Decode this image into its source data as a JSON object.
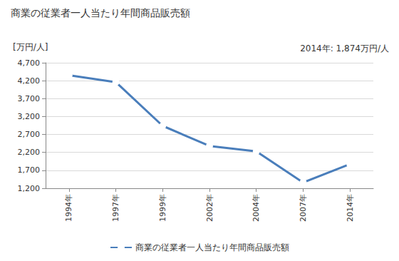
{
  "chart_data": {
    "type": "line",
    "title": "商業の従業者一人当たり年間商品販売額",
    "ylabel": "[万円/人]",
    "annotations": [
      "2014年: 1,874万円/人"
    ],
    "categories": [
      "1994年",
      "1997年",
      "1999年",
      "2002年",
      "2004年",
      "2007年",
      "2014年"
    ],
    "series": [
      {
        "name": "商業の従業者一人当たり年間商品販売額",
        "color": "#4a7ebb",
        "marker": "circle",
        "values": [
          4350,
          4160,
          2940,
          2380,
          2230,
          1360,
          1874
        ]
      }
    ],
    "ylim": [
      1200,
      4700
    ],
    "yticks": [
      {
        "value": 1200,
        "label": "1,200"
      },
      {
        "value": 1700,
        "label": "1,700"
      },
      {
        "value": 2200,
        "label": "2,200"
      },
      {
        "value": 2700,
        "label": "2,700"
      },
      {
        "value": 3200,
        "label": "3,200"
      },
      {
        "value": 3700,
        "label": "3,700"
      },
      {
        "value": 4200,
        "label": "4,200"
      },
      {
        "value": 4700,
        "label": "4,700"
      }
    ],
    "grid": true,
    "legend": "bottom"
  }
}
